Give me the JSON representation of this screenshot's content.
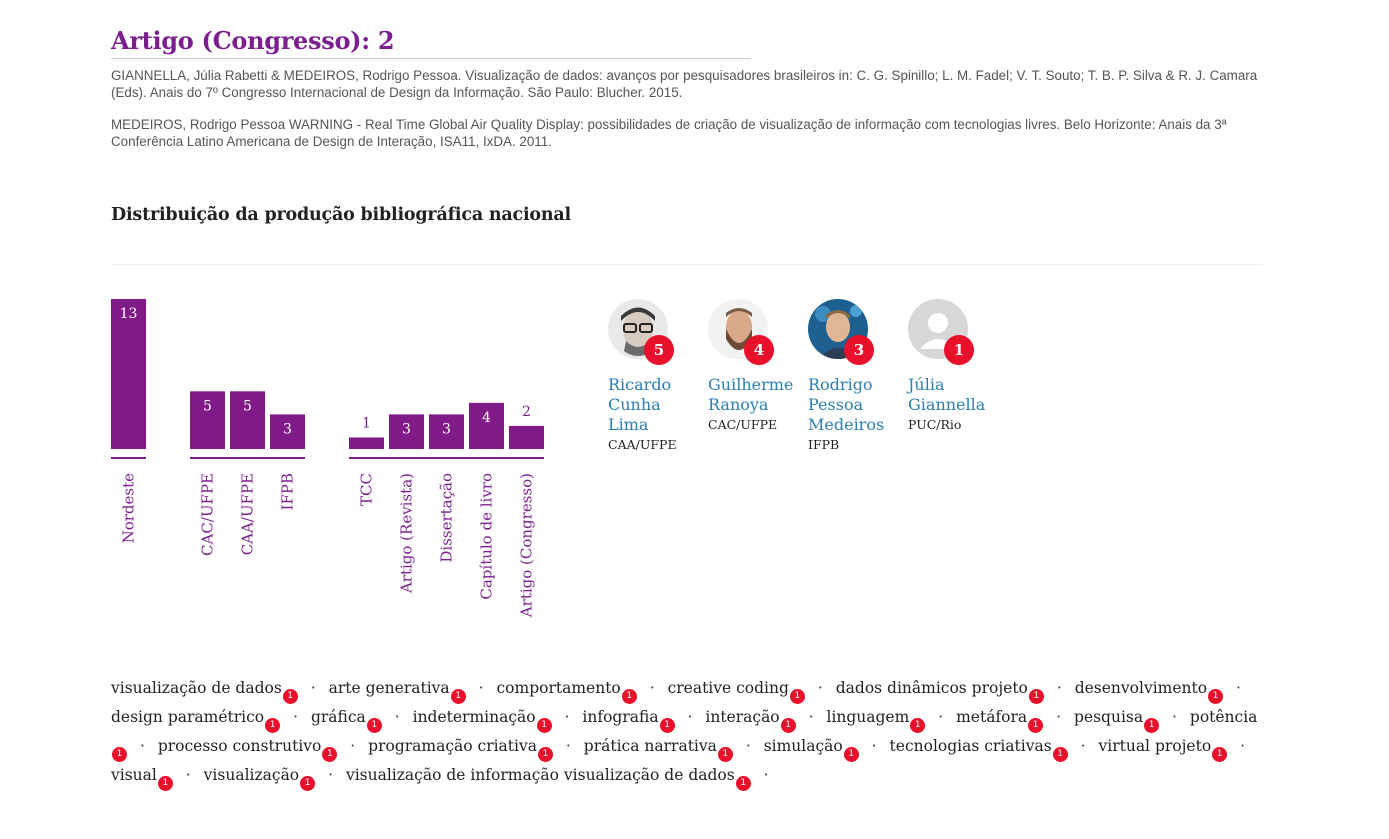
{
  "section": {
    "title": "Artigo (Congresso): 2",
    "references": [
      "GIANNELLA, Júlia Rabetti & MEDEIROS, Rodrigo Pessoa. Visualização de dados: avanços por pesquisadores brasileiros in: C. G. Spinillo; L. M. Fadel; V. T. Souto; T. B. P. Silva & R. J. Camara (Eds). Anais do 7º Congresso Internacional de Design da Informação. São Paulo: Blucher. 2015.",
      "MEDEIROS, Rodrigo Pessoa WARNING - Real Time Global Air Quality Display: possibilidades de criação de visualização de informação com tecnologias livres. Belo Horizonte: Anais da 3ª Conferência Latino Americana de Design de Interação, ISA11, IxDA. 2011."
    ]
  },
  "distribution": {
    "title": "Distribuição da produção bibliográfica nacional"
  },
  "chart_data": {
    "type": "bar",
    "ylim": [
      0,
      13
    ],
    "bar_color": "#801a89",
    "groups": [
      {
        "categories": [
          "Nordeste"
        ],
        "values": [
          13
        ]
      },
      {
        "categories": [
          "CAC/UFPE",
          "CAA/UFPE",
          "IFPB"
        ],
        "values": [
          5,
          5,
          3
        ]
      },
      {
        "categories": [
          "TCC",
          "Artigo (Revista)",
          "Dissertação",
          "Capítulo de livro",
          "Artigo (Congresso)"
        ],
        "values": [
          1,
          3,
          3,
          4,
          2
        ]
      }
    ]
  },
  "people": [
    {
      "name": "Ricardo Cunha Lima",
      "name_lines": [
        "Ricardo",
        "Cunha",
        "Lima"
      ],
      "institution": "CAA/UFPE",
      "count": "5",
      "avatar": "photo-glasses"
    },
    {
      "name": "Guilherme Ranoya",
      "name_lines": [
        "Guilherme",
        "Ranoya"
      ],
      "institution": "CAC/UFPE",
      "count": "4",
      "avatar": "photo-beard"
    },
    {
      "name": "Rodrigo Pessoa Medeiros",
      "name_lines": [
        "Rodrigo",
        "Pessoa",
        "Medeiros"
      ],
      "institution": "IFPB",
      "count": "3",
      "avatar": "photo-blue"
    },
    {
      "name": "Júlia Giannella",
      "name_lines": [
        "Júlia",
        "Giannella"
      ],
      "institution": "PUC/Rio",
      "count": "1",
      "avatar": "placeholder-user-icon"
    }
  ],
  "keywords": [
    {
      "label": "visualização de dados",
      "count": "1"
    },
    {
      "label": "arte generativa",
      "count": "1"
    },
    {
      "label": "comportamento",
      "count": "1"
    },
    {
      "label": "creative coding",
      "count": "1"
    },
    {
      "label": "dados dinâmicos projeto",
      "count": "1"
    },
    {
      "label": "desenvolvimento",
      "count": "1"
    },
    {
      "label": "design paramétrico",
      "count": "1"
    },
    {
      "label": "gráfica",
      "count": "1"
    },
    {
      "label": "indeterminação",
      "count": "1"
    },
    {
      "label": "infografia",
      "count": "1"
    },
    {
      "label": "interação",
      "count": "1"
    },
    {
      "label": "linguagem",
      "count": "1"
    },
    {
      "label": "metáfora",
      "count": "1"
    },
    {
      "label": "pesquisa",
      "count": "1"
    },
    {
      "label": "potência",
      "count": "1"
    },
    {
      "label": "processo construtivo",
      "count": "1"
    },
    {
      "label": "programação criativa",
      "count": "1"
    },
    {
      "label": "prática narrativa",
      "count": "1"
    },
    {
      "label": "simulação",
      "count": "1"
    },
    {
      "label": "tecnologias criativas",
      "count": "1"
    },
    {
      "label": "virtual projeto",
      "count": "1"
    },
    {
      "label": "visual",
      "count": "1"
    },
    {
      "label": "visualização",
      "count": "1"
    },
    {
      "label": "visualização de informação visualização de dados",
      "count": "1"
    }
  ],
  "separator": "·",
  "colors": {
    "accent": "#7b1f8e",
    "badge": "#e8102a",
    "link": "#2a7fb0"
  }
}
